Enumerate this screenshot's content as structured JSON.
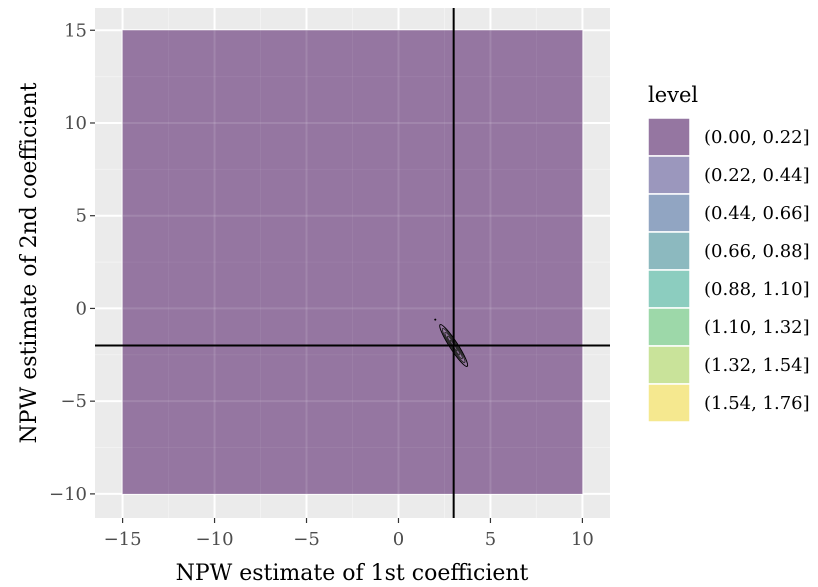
{
  "chart_data": {
    "type": "contour",
    "xlabel": "NPW estimate of 1st coefficient",
    "ylabel": "NPW estimate of 2nd coefficient",
    "xlim": [
      -16.5,
      11.5
    ],
    "ylim": [
      -11.3,
      16.2
    ],
    "x_ticks": [
      -15,
      -10,
      -5,
      0,
      5,
      10
    ],
    "y_ticks": [
      -10,
      -5,
      0,
      5,
      10,
      15
    ],
    "x_tick_labels": [
      "−15",
      "−10",
      "−5",
      "0",
      "5",
      "10"
    ],
    "y_tick_labels": [
      "−10",
      "−5",
      "0",
      "5",
      "10",
      "15"
    ],
    "filled_region": {
      "x": [
        -15,
        10
      ],
      "y": [
        -10,
        15
      ],
      "level": "(0.00, 0.22]"
    },
    "contour_center": {
      "x": 3.0,
      "y": -2.0
    },
    "contour_orientation_deg": -57,
    "contour_levels": [
      {
        "rx": 1.35,
        "ry": 0.22
      },
      {
        "rx": 1.1,
        "ry": 0.17
      },
      {
        "rx": 0.85,
        "ry": 0.13
      },
      {
        "rx": 0.6,
        "ry": 0.09
      },
      {
        "rx": 0.35,
        "ry": 0.055
      }
    ],
    "reference_lines": {
      "vertical_x": 3.0,
      "horizontal_y": -2.0
    },
    "grid": true,
    "legend": {
      "title": "level",
      "position": "right",
      "entries": [
        {
          "label": "(0.00, 0.22]",
          "color": "#9576A1"
        },
        {
          "label": "(0.22, 0.44]",
          "color": "#9B97BD"
        },
        {
          "label": "(0.44, 0.66]",
          "color": "#91A5C2"
        },
        {
          "label": "(0.66, 0.88]",
          "color": "#8CB9BF"
        },
        {
          "label": "(0.88, 1.10]",
          "color": "#8CCDBF"
        },
        {
          "label": "(1.10, 1.32]",
          "color": "#9DD8A9"
        },
        {
          "label": "(1.32, 1.54]",
          "color": "#C9E39A"
        },
        {
          "label": "(1.54, 1.76]",
          "color": "#F5E88F"
        }
      ]
    }
  },
  "colors": {
    "panel_background": "#EBEBEB",
    "grid_major": "#FFFFFF",
    "grid_minor": "#F2F2F2",
    "fill_level_1": "#9576A1",
    "reference_line": "#000000"
  }
}
